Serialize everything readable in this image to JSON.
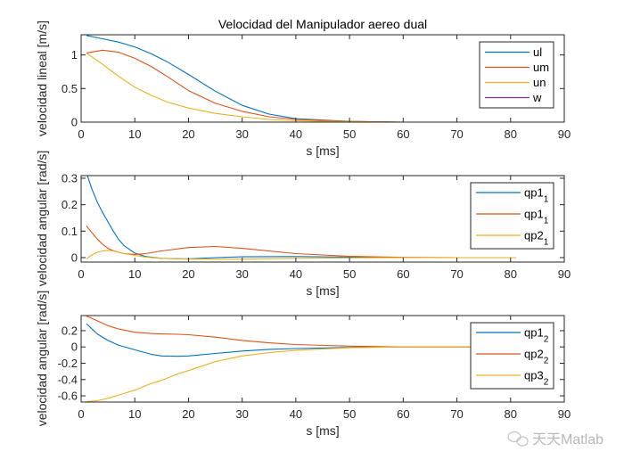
{
  "chart_data": [
    {
      "type": "line",
      "title": "Velocidad del Manipulador aereo dual",
      "xlabel": "s [ms]",
      "ylabel": "velocidad lineal [m/s]",
      "xlim": [
        0,
        90
      ],
      "ylim": [
        0,
        1.3
      ],
      "xticks": [
        "0",
        "10",
        "20",
        "30",
        "40",
        "50",
        "60",
        "70",
        "80",
        "90"
      ],
      "yticks": [
        {
          "v": 0,
          "label": "0"
        },
        {
          "v": 0.5,
          "label": "0.5"
        },
        {
          "v": 1,
          "label": "1"
        }
      ],
      "legend_position": "top-right",
      "x": [
        1,
        4,
        7,
        10,
        13,
        16,
        20,
        25,
        30,
        35,
        40,
        50,
        60,
        70,
        81
      ],
      "series": [
        {
          "name": "ul",
          "sub": "",
          "color": "#0072BD",
          "values": [
            1.29,
            1.24,
            1.19,
            1.12,
            1.02,
            0.9,
            0.71,
            0.46,
            0.25,
            0.12,
            0.05,
            0.01,
            0.0,
            0.0,
            0.0
          ]
        },
        {
          "name": "um",
          "sub": "",
          "color": "#D95319",
          "values": [
            1.03,
            1.07,
            1.04,
            0.95,
            0.83,
            0.68,
            0.47,
            0.28,
            0.16,
            0.08,
            0.04,
            0.01,
            0.0,
            0.0,
            0.0
          ]
        },
        {
          "name": "un",
          "sub": "",
          "color": "#EDB120",
          "values": [
            1.03,
            0.86,
            0.68,
            0.52,
            0.4,
            0.3,
            0.21,
            0.13,
            0.08,
            0.04,
            0.02,
            0.005,
            0.0,
            0.0,
            0.0
          ]
        },
        {
          "name": "w",
          "sub": "",
          "color": "#7E2F8E",
          "values": [
            0.0,
            0.0,
            0.0,
            0.0,
            0.0,
            0.0,
            0.0,
            0.0,
            0.0,
            0.0,
            0.0,
            0.0,
            0.0,
            0.0,
            0.0
          ]
        }
      ]
    },
    {
      "type": "line",
      "title": "",
      "xlabel": "s [ms]",
      "ylabel": "velocidad angular [rad/s]",
      "xlim": [
        0,
        90
      ],
      "ylim": [
        -0.017,
        0.31
      ],
      "xticks": [
        "0",
        "10",
        "20",
        "30",
        "40",
        "50",
        "60",
        "70",
        "80",
        "90"
      ],
      "yticks": [
        {
          "v": 0,
          "label": "0"
        },
        {
          "v": 0.1,
          "label": "0.1"
        },
        {
          "v": 0.2,
          "label": "0.2"
        },
        {
          "v": 0.3,
          "label": "0.3"
        }
      ],
      "legend_position": "top-right",
      "x": [
        1,
        2,
        3,
        4,
        5,
        6,
        7,
        8,
        10,
        12,
        15,
        20,
        25,
        30,
        40,
        50,
        60,
        70,
        81
      ],
      "series": [
        {
          "name": "qp1",
          "sub": "1",
          "color": "#0072BD",
          "values": [
            0.32,
            0.26,
            0.21,
            0.17,
            0.135,
            0.1,
            0.068,
            0.045,
            0.017,
            0.004,
            -0.003,
            -0.005,
            0.0,
            0.003,
            0.004,
            0.002,
            0.0,
            0.0,
            0.0
          ]
        },
        {
          "name": "qp1",
          "sub": "1",
          "color": "#D95319",
          "values": [
            0.12,
            0.095,
            0.07,
            0.05,
            0.035,
            0.026,
            0.02,
            0.015,
            0.012,
            0.015,
            0.025,
            0.038,
            0.042,
            0.035,
            0.015,
            0.005,
            0.001,
            0.0,
            0.0
          ]
        },
        {
          "name": "qp2",
          "sub": "1",
          "color": "#EDB120",
          "values": [
            -0.005,
            0.01,
            0.02,
            0.025,
            0.027,
            0.025,
            0.02,
            0.015,
            0.008,
            0.002,
            -0.003,
            -0.006,
            -0.006,
            -0.006,
            -0.003,
            -0.001,
            0.0,
            0.0,
            0.0
          ]
        }
      ]
    },
    {
      "type": "line",
      "title": "",
      "xlabel": "s [ms]",
      "ylabel": "velocidad angular [rad/s]",
      "xlim": [
        0,
        90
      ],
      "ylim": [
        -0.676,
        0.385
      ],
      "xticks": [
        "0",
        "10",
        "20",
        "30",
        "40",
        "50",
        "60",
        "70",
        "80",
        "90"
      ],
      "yticks": [
        {
          "v": -0.6,
          "label": "-0.6"
        },
        {
          "v": -0.4,
          "label": "-0.4"
        },
        {
          "v": -0.2,
          "label": "-0.2"
        },
        {
          "v": 0,
          "label": "0"
        },
        {
          "v": 0.2,
          "label": "0.2"
        }
      ],
      "legend_position": "top-right",
      "x": [
        1,
        3,
        5,
        7,
        10,
        13,
        15,
        18,
        20,
        25,
        30,
        35,
        40,
        50,
        60,
        70,
        81
      ],
      "series": [
        {
          "name": "qp1",
          "sub": "2",
          "color": "#0072BD",
          "values": [
            0.285,
            0.16,
            0.08,
            0.02,
            -0.035,
            -0.09,
            -0.11,
            -0.115,
            -0.11,
            -0.08,
            -0.05,
            -0.03,
            -0.02,
            -0.005,
            0.0,
            0.0,
            0.0
          ]
        },
        {
          "name": "qp2",
          "sub": "2",
          "color": "#D95319",
          "values": [
            0.38,
            0.32,
            0.26,
            0.22,
            0.18,
            0.165,
            0.16,
            0.155,
            0.15,
            0.12,
            0.08,
            0.05,
            0.03,
            0.01,
            0.0,
            0.0,
            0.0
          ]
        },
        {
          "name": "qp3",
          "sub": "2",
          "color": "#EDB120",
          "values": [
            -0.67,
            -0.66,
            -0.63,
            -0.59,
            -0.53,
            -0.45,
            -0.41,
            -0.33,
            -0.29,
            -0.18,
            -0.11,
            -0.07,
            -0.04,
            -0.01,
            0.0,
            0.0,
            0.0
          ]
        }
      ]
    }
  ],
  "watermark": {
    "text": "天天Matlab",
    "icon": "wechat-icon"
  }
}
